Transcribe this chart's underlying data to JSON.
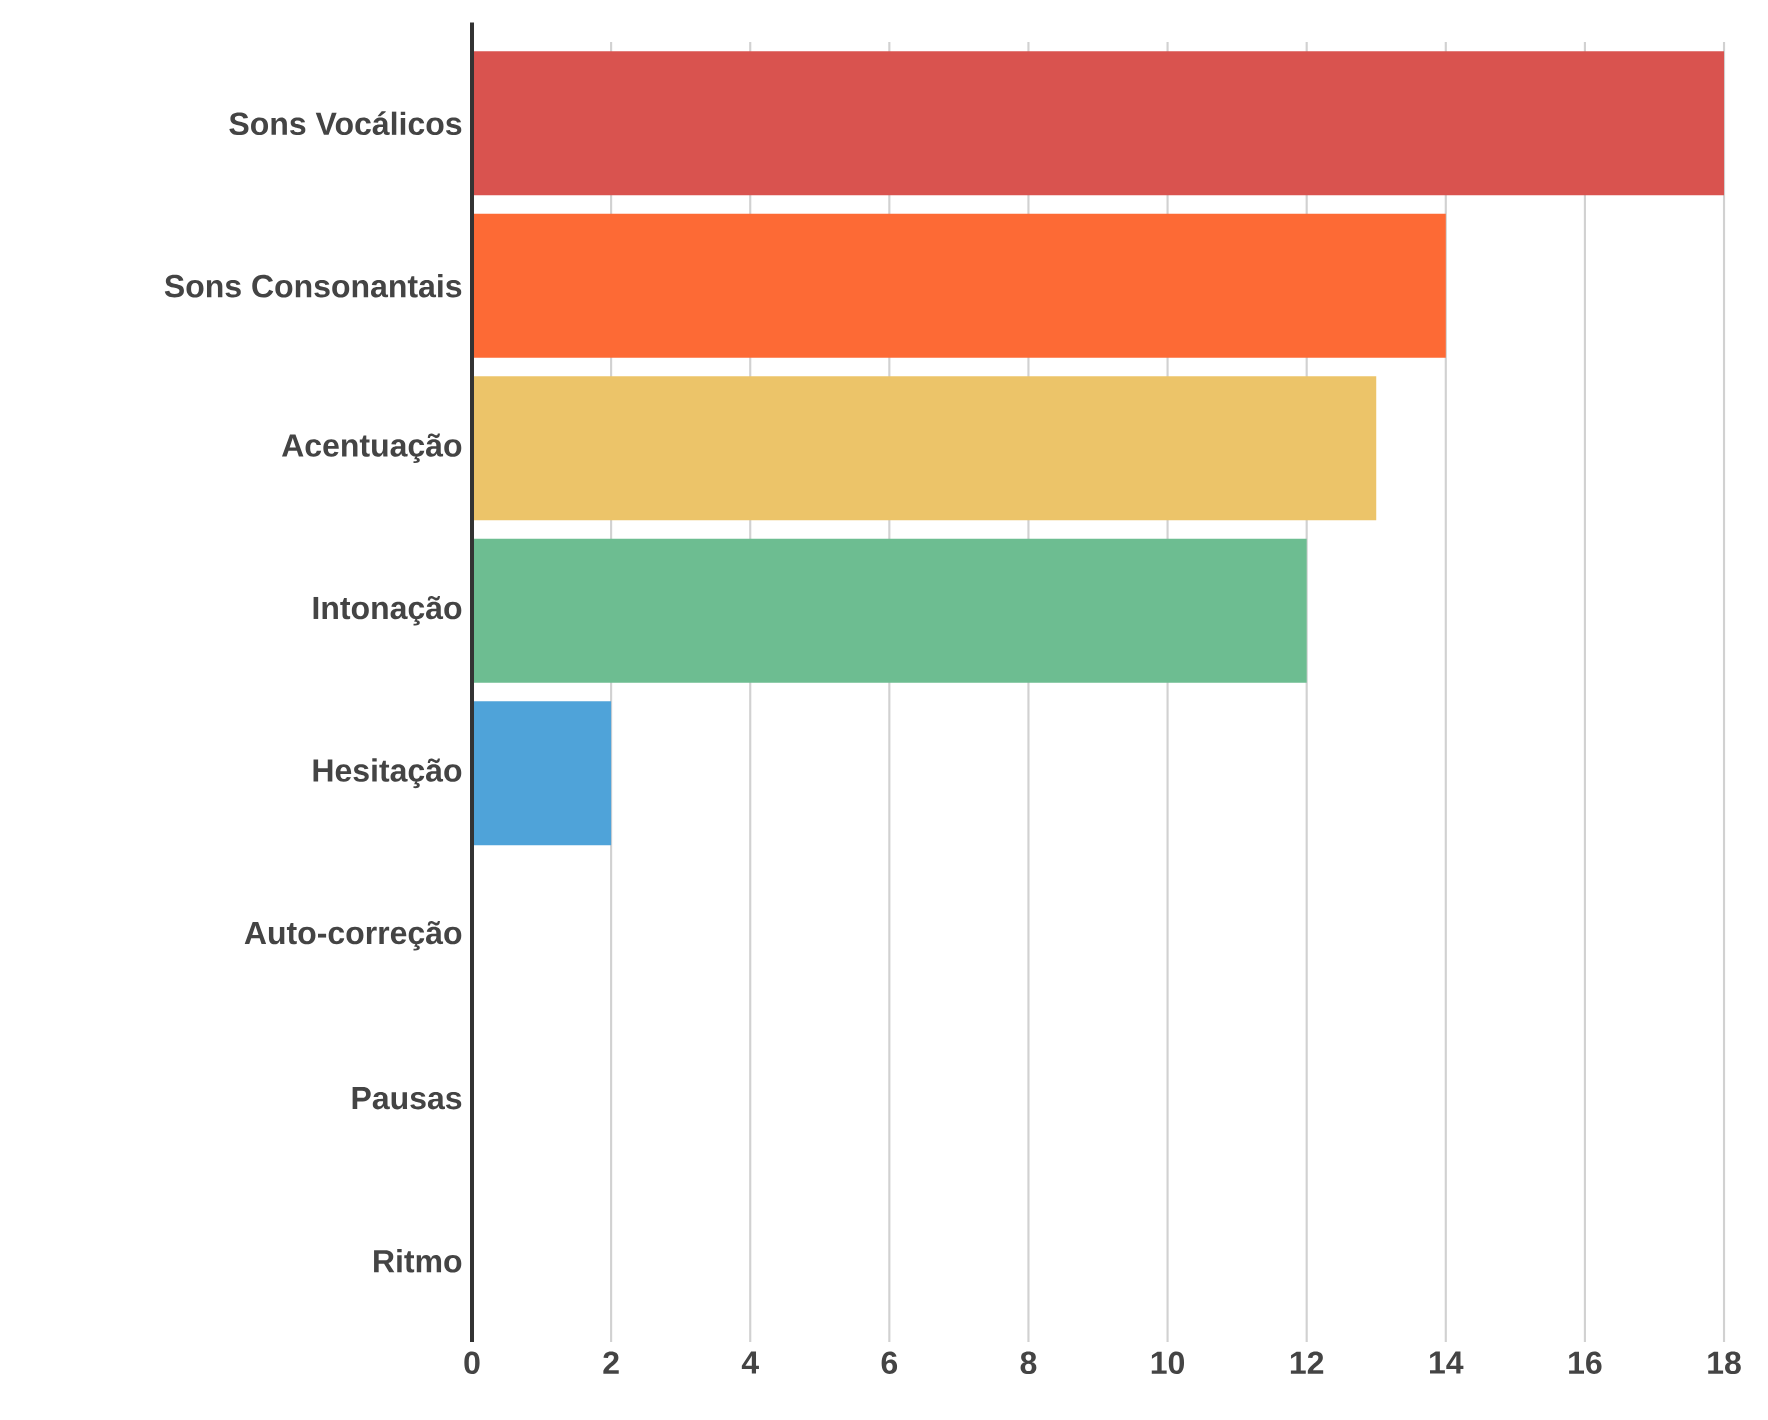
{
  "chart_data": {
    "type": "bar",
    "orientation": "horizontal",
    "categories": [
      "Sons Vocálicos",
      "Sons Consonantais",
      "Acentuação",
      "Intonação",
      "Hesitação",
      "Auto-correção",
      "Pausas",
      "Ritmo"
    ],
    "values": [
      18,
      14,
      13,
      12,
      2,
      0,
      0,
      0
    ],
    "colors": [
      "#d9534f",
      "#fd6a35",
      "#ecc469",
      "#6dbd91",
      "#4fa3d9",
      "#999999",
      "#999999",
      "#999999"
    ],
    "xlim": [
      0,
      18
    ],
    "xticks": [
      0,
      2,
      4,
      6,
      8,
      10,
      12,
      14,
      16,
      18
    ],
    "grid": "x"
  }
}
